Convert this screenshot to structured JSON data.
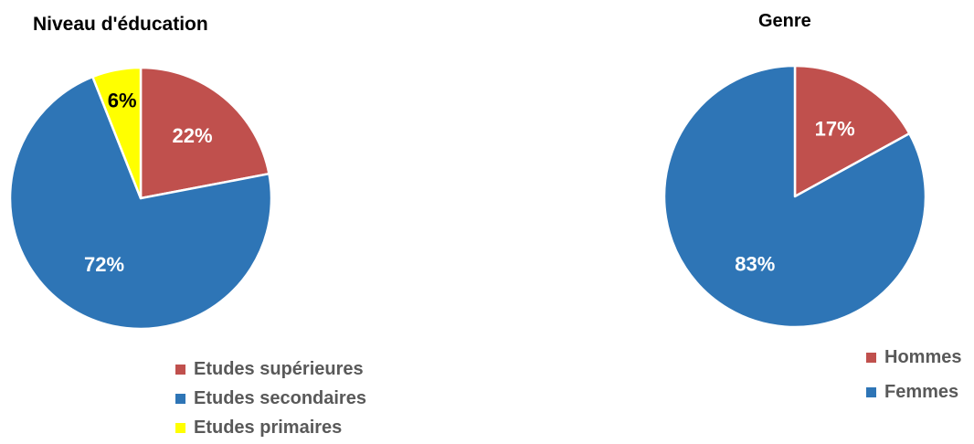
{
  "chart_data": [
    {
      "type": "pie",
      "title": "Niveau d'éducation",
      "legend_position": "bottom",
      "categories": [
        "Etudes supérieures",
        "Etudes secondaires",
        "Etudes primaires"
      ],
      "values": [
        22,
        72,
        6
      ],
      "data_labels": [
        "22%",
        "72%",
        "6%"
      ],
      "colors": [
        "#C0504D",
        "#2E75B6",
        "#FFFF00"
      ],
      "label_colors": [
        "#FFFFFF",
        "#FFFFFF",
        "#000000"
      ]
    },
    {
      "type": "pie",
      "title": "Genre",
      "legend_position": "bottom-right",
      "categories": [
        "Hommes",
        "Femmes"
      ],
      "values": [
        17,
        83
      ],
      "data_labels": [
        "17%",
        "83%"
      ],
      "colors": [
        "#C0504D",
        "#2E75B6"
      ],
      "label_colors": [
        "#FFFFFF",
        "#FFFFFF"
      ]
    }
  ]
}
